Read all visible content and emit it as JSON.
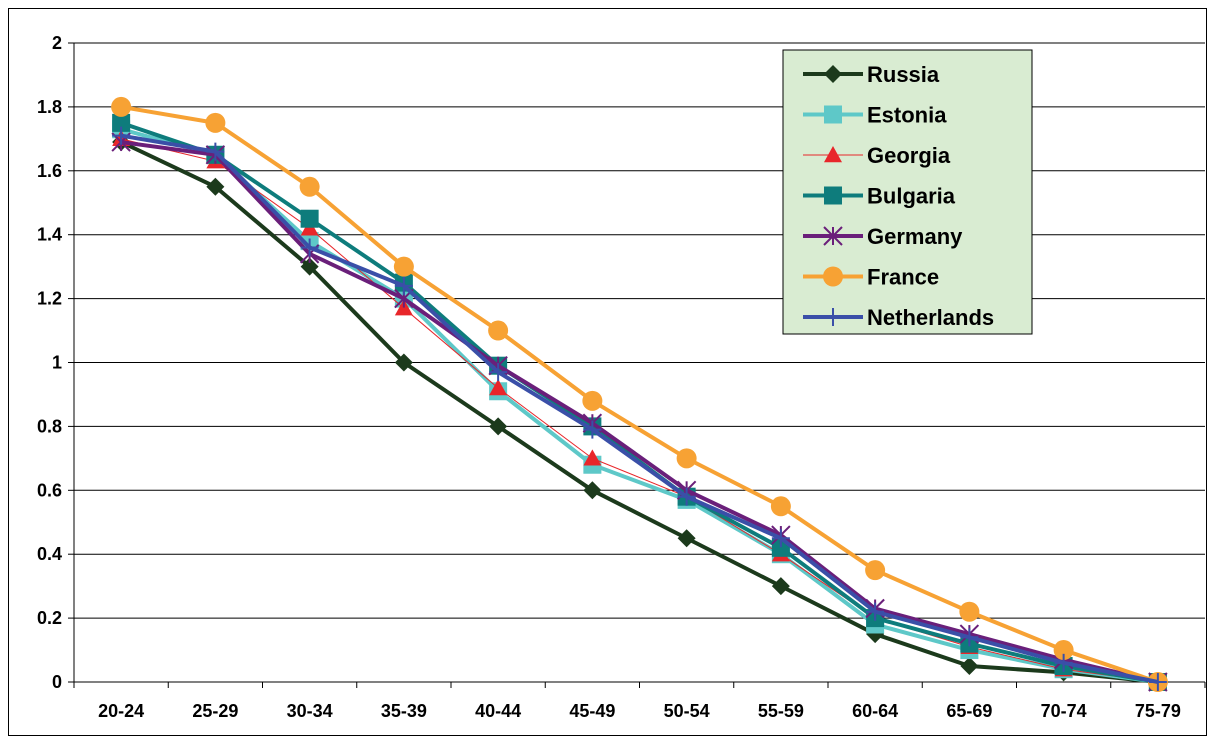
{
  "chart_data": {
    "type": "line",
    "title": "",
    "xlabel": "",
    "ylabel": "",
    "categories": [
      "20-24",
      "25-29",
      "30-34",
      "35-39",
      "40-44",
      "45-49",
      "50-54",
      "55-59",
      "60-64",
      "65-69",
      "70-74",
      "75-79"
    ],
    "ylim": [
      0,
      2
    ],
    "yticks": [
      "0",
      "0.2",
      "0.4",
      "0.6",
      "0.8",
      "1",
      "1.2",
      "1.4",
      "1.6",
      "1.8",
      "2"
    ],
    "grid": "horizontal",
    "legend_position": "top-right",
    "legend_background": "#d9ecd2",
    "series": [
      {
        "name": "Russia",
        "color": "#1c3a1c",
        "marker": "diamond",
        "values": [
          1.69,
          1.55,
          1.3,
          1.0,
          0.8,
          0.6,
          0.45,
          0.3,
          0.15,
          0.05,
          0.03,
          0.0
        ]
      },
      {
        "name": "Estonia",
        "color": "#5ec8c8",
        "marker": "square",
        "values": [
          1.73,
          1.65,
          1.38,
          1.2,
          0.91,
          0.68,
          0.57,
          0.4,
          0.18,
          0.1,
          0.04,
          0.0
        ]
      },
      {
        "name": "Georgia",
        "color": "#e8262a",
        "marker": "triangle",
        "values": [
          1.7,
          1.63,
          1.42,
          1.17,
          0.92,
          0.7,
          0.58,
          0.4,
          0.2,
          0.11,
          0.04,
          0.0
        ]
      },
      {
        "name": "Bulgaria",
        "color": "#0e7c7c",
        "marker": "square",
        "values": [
          1.75,
          1.65,
          1.45,
          1.25,
          0.99,
          0.8,
          0.58,
          0.42,
          0.2,
          0.12,
          0.05,
          0.0
        ]
      },
      {
        "name": "Germany",
        "color": "#6a1f7a",
        "marker": "star",
        "values": [
          1.69,
          1.65,
          1.34,
          1.2,
          0.99,
          0.81,
          0.6,
          0.46,
          0.23,
          0.15,
          0.07,
          0.0
        ]
      },
      {
        "name": "France",
        "color": "#f7a234",
        "marker": "circle",
        "values": [
          1.8,
          1.75,
          1.55,
          1.3,
          1.1,
          0.88,
          0.7,
          0.55,
          0.35,
          0.22,
          0.1,
          0.0
        ]
      },
      {
        "name": "Netherlands",
        "color": "#3a4fa8",
        "marker": "plus",
        "values": [
          1.71,
          1.66,
          1.36,
          1.24,
          0.97,
          0.79,
          0.58,
          0.45,
          0.22,
          0.14,
          0.06,
          0.0
        ]
      }
    ]
  }
}
